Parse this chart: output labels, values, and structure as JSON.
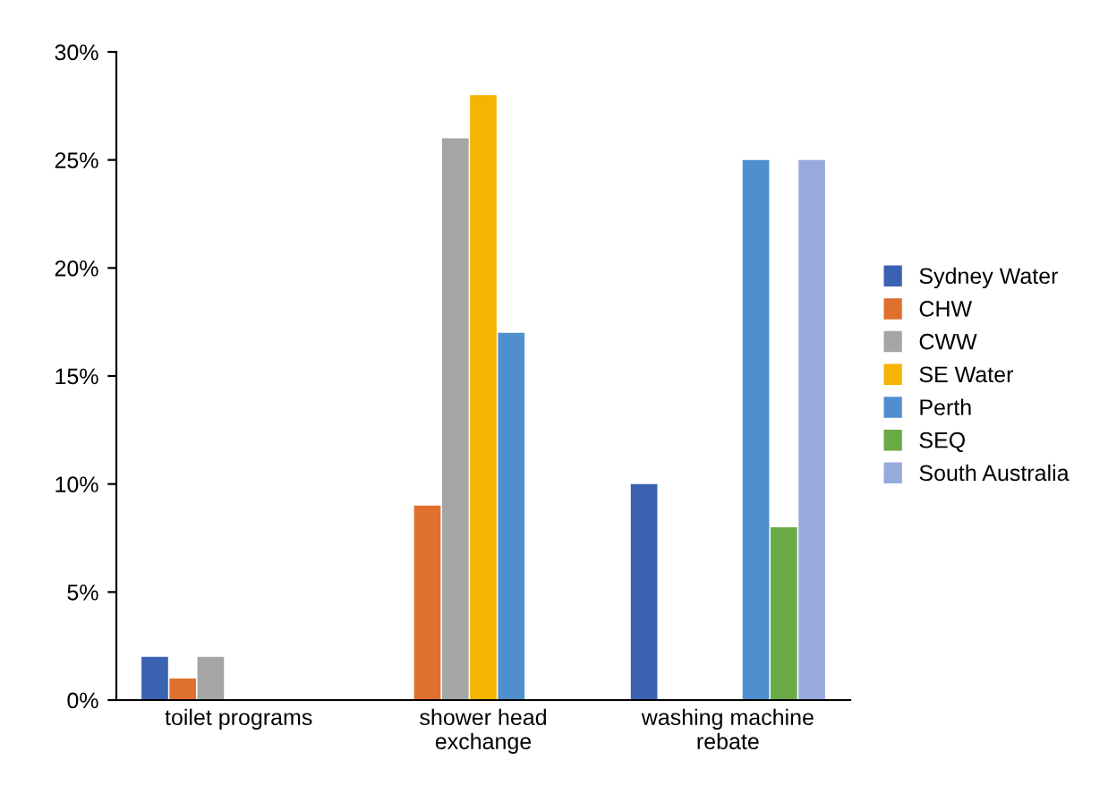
{
  "chart_data": {
    "type": "bar",
    "categories": [
      "toilet programs",
      "shower head\nexchange",
      "washing machine\nrebate"
    ],
    "series": [
      {
        "name": "Sydney Water",
        "color": "#3a62b0",
        "values": [
          2,
          null,
          10
        ]
      },
      {
        "name": "CHW",
        "color": "#e0702e",
        "values": [
          1,
          9,
          null
        ]
      },
      {
        "name": "CWW",
        "color": "#a5a5a5",
        "values": [
          2,
          26,
          null
        ]
      },
      {
        "name": "SE Water",
        "color": "#f5b400",
        "values": [
          null,
          28,
          null
        ]
      },
      {
        "name": "Perth",
        "color": "#4f8fcf",
        "values": [
          null,
          17,
          25
        ]
      },
      {
        "name": "SEQ",
        "color": "#6aaa45",
        "values": [
          null,
          null,
          8
        ]
      },
      {
        "name": "South Australia",
        "color": "#97a9dd",
        "values": [
          null,
          null,
          25
        ]
      }
    ],
    "ylim": [
      0,
      30
    ],
    "yticks": [
      {
        "value": 0,
        "label": "0%"
      },
      {
        "value": 5,
        "label": "5%"
      },
      {
        "value": 10,
        "label": "10%"
      },
      {
        "value": 15,
        "label": "15%"
      },
      {
        "value": 20,
        "label": "20%"
      },
      {
        "value": 25,
        "label": "25%"
      },
      {
        "value": 30,
        "label": "30%"
      }
    ],
    "grid": false,
    "legend": "right"
  }
}
